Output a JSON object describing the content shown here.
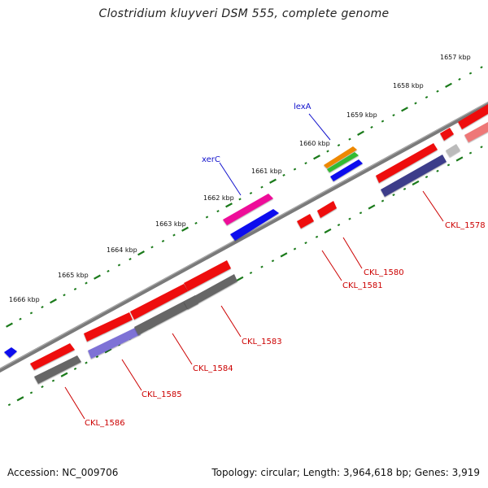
{
  "title": "Clostridium kluyveri DSM 555, complete genome",
  "accession": "Accession: NC_009706",
  "topology": "Topology: circular; Length: 3,964,618 bp; Genes: 3,919",
  "kbp_labels": [
    "1657 kbp",
    "1658 kbp",
    "1659 kbp",
    "1660 kbp",
    "1661 kbp",
    "1662 kbp",
    "1663 kbp",
    "1664 kbp",
    "1665 kbp",
    "1666 kbp"
  ],
  "gene_labels": {
    "xerC": "xerC",
    "lexA": "lexA",
    "CKL_1578": "CKL_1578",
    "CKL_1580": "CKL_1580",
    "CKL_1581": "CKL_1581",
    "CKL_1583": "CKL_1583",
    "CKL_1584": "CKL_1584",
    "CKL_1585": "CKL_1585",
    "CKL_1586": "CKL_1586"
  },
  "colors": {
    "backbone": "#808080",
    "tick": "#1a7a1a",
    "cds_red": "#ee1111",
    "gray": "#666666",
    "navy": "#3d3d8a",
    "lavender": "#7e72d6",
    "blue": "#1111ee",
    "magenta": "#ee1199",
    "orange": "#ee8800",
    "green": "#33bb33",
    "pink": "#ee7777",
    "light_gray": "#bbbbbb",
    "blue_label": "#1111cc",
    "red_label": "#cc0000"
  }
}
